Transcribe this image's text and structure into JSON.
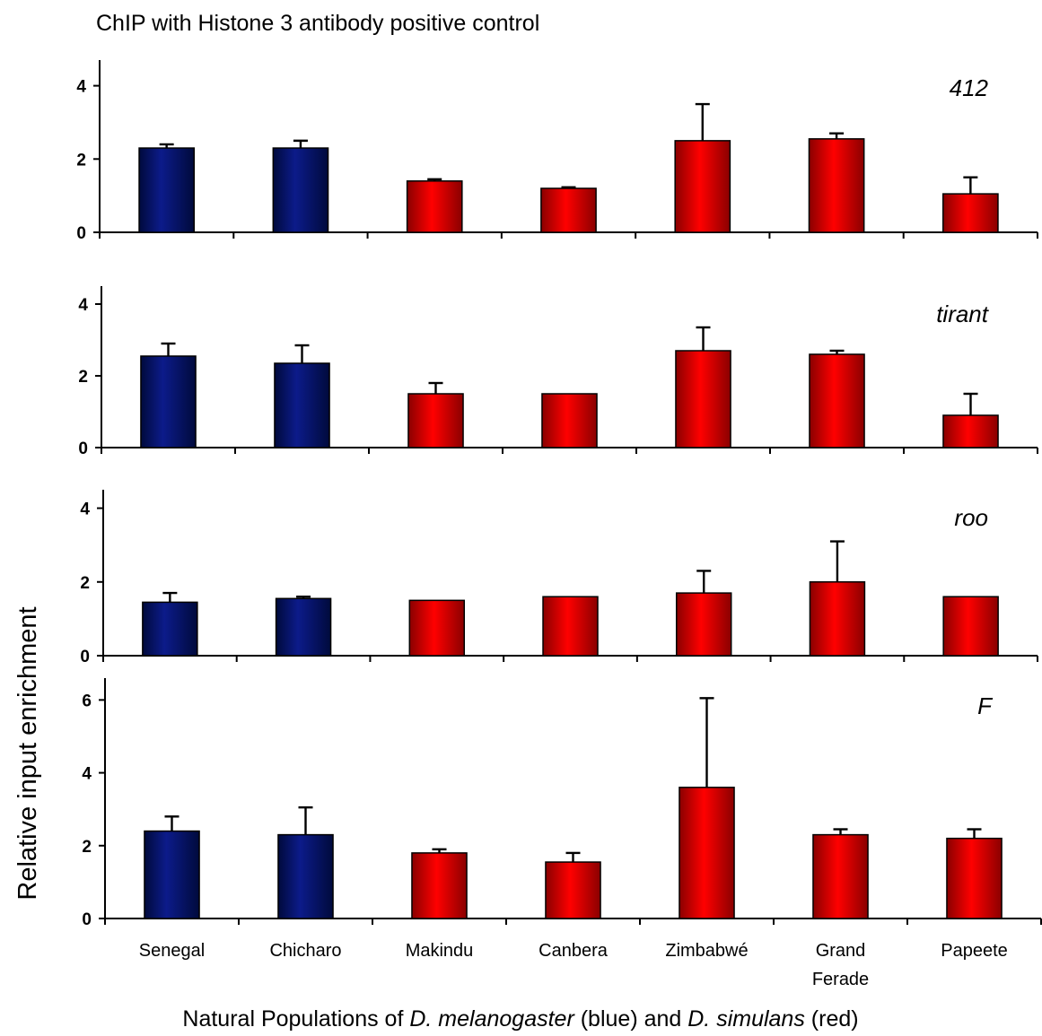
{
  "chart_data": {
    "type": "bar",
    "title": "ChIP with Histone 3 antibody positive control",
    "ylabel": "Relative input enrichment",
    "xlabel": {
      "prefix": "Natural Populations of ",
      "sp1": "D. melanogaster",
      "mid": " (blue) and ",
      "sp2": "D. simulans",
      "suffix": " (red)"
    },
    "categories": [
      {
        "line1": "Senegal",
        "line2": ""
      },
      {
        "line1": "Chicharo",
        "line2": ""
      },
      {
        "line1": "Makindu",
        "line2": ""
      },
      {
        "line1": "Canbera",
        "line2": ""
      },
      {
        "line1": "Zimbabwé",
        "line2": ""
      },
      {
        "line1": "Grand",
        "line2": "Ferade"
      },
      {
        "line1": "Papeete",
        "line2": ""
      }
    ],
    "species_per_category": [
      "melanogaster",
      "melanogaster",
      "simulans",
      "simulans",
      "simulans",
      "simulans",
      "simulans"
    ],
    "colors": {
      "melanogaster": "#0a1470",
      "simulans": "#ff0000"
    },
    "panels": [
      {
        "name": "412",
        "ylim": [
          0,
          4.7
        ],
        "yticks": [
          0,
          2,
          4
        ],
        "values": [
          2.3,
          2.3,
          1.4,
          1.2,
          2.5,
          2.55,
          1.05
        ],
        "errors": [
          0.1,
          0.2,
          0.05,
          0.03,
          1.0,
          0.15,
          0.45
        ]
      },
      {
        "name": "tirant",
        "ylim": [
          0,
          4.5
        ],
        "yticks": [
          0,
          2,
          4
        ],
        "values": [
          2.55,
          2.35,
          1.5,
          1.5,
          2.7,
          2.6,
          0.9
        ],
        "errors": [
          0.35,
          0.5,
          0.3,
          0.0,
          0.65,
          0.1,
          0.6
        ]
      },
      {
        "name": "roo",
        "ylim": [
          0,
          4.5
        ],
        "yticks": [
          0,
          2,
          4
        ],
        "values": [
          1.45,
          1.55,
          1.5,
          1.6,
          1.7,
          2.0,
          1.6
        ],
        "errors": [
          0.25,
          0.05,
          0.0,
          0.0,
          0.6,
          1.1,
          0.0
        ]
      },
      {
        "name": "F",
        "ylim": [
          0,
          6.6
        ],
        "yticks": [
          0,
          2,
          4,
          6
        ],
        "values": [
          2.4,
          2.3,
          1.8,
          1.55,
          3.6,
          2.3,
          2.2
        ],
        "errors": [
          0.4,
          0.75,
          0.1,
          0.25,
          2.45,
          0.15,
          0.25
        ]
      }
    ]
  }
}
